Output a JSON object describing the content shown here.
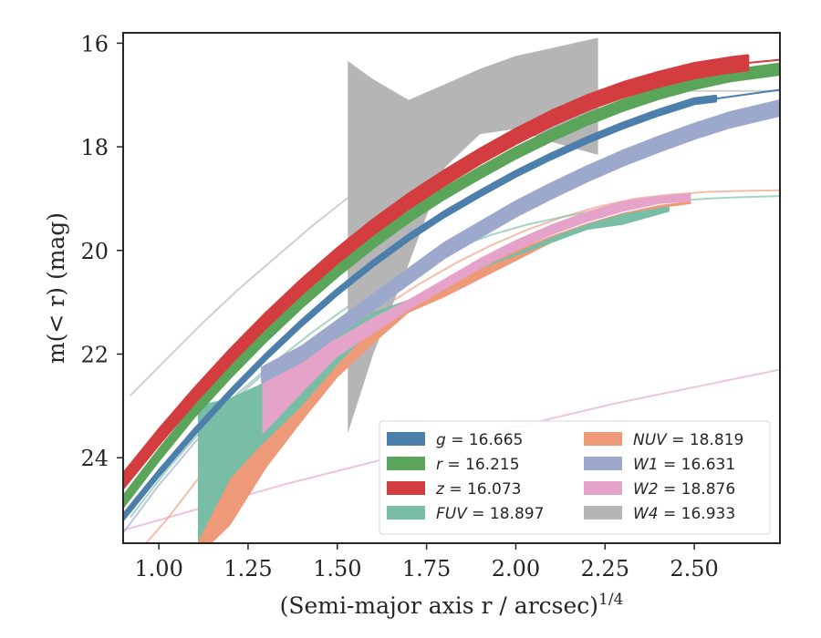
{
  "chart_data": {
    "type": "line",
    "xlabel": "(Semi-major axis r / arcsec)",
    "xlabel_exp": "1/4",
    "ylabel": "m(< r) (mag)",
    "xlim": [
      0.9,
      2.74
    ],
    "ylim": [
      25.65,
      15.8
    ],
    "y_inverted": true,
    "xticks": [
      1.0,
      1.25,
      1.5,
      1.75,
      2.0,
      2.25,
      2.5
    ],
    "xtick_labels": [
      "1.00",
      "1.25",
      "1.50",
      "1.75",
      "2.00",
      "2.25",
      "2.50"
    ],
    "yticks": [
      16,
      18,
      20,
      22,
      24
    ],
    "ytick_labels": [
      "16",
      "18",
      "20",
      "22",
      "24"
    ],
    "legend_position": "lower-right",
    "legend_columns": 2,
    "series": [
      {
        "band": "g",
        "value": "16.665",
        "color": "#4c7fab",
        "band_x": [
          0.9,
          2.56
        ],
        "band_width": 0.05,
        "line_x": [
          2.56,
          2.74
        ],
        "line_y": [
          17.07,
          16.9
        ],
        "x": [
          0.9,
          1.0,
          1.1,
          1.2,
          1.3,
          1.4,
          1.5,
          1.6,
          1.7,
          1.8,
          1.9,
          2.0,
          2.1,
          2.2,
          2.3,
          2.4,
          2.5,
          2.56
        ],
        "y": [
          25.15,
          24.3,
          23.5,
          22.75,
          22.05,
          21.4,
          20.8,
          20.25,
          19.75,
          19.3,
          18.9,
          18.52,
          18.18,
          17.87,
          17.59,
          17.34,
          17.12,
          17.07
        ]
      },
      {
        "band": "r",
        "value": "16.215",
        "color": "#5ba55b",
        "band_x": [
          0.9,
          2.74
        ],
        "band_width": 0.1,
        "x": [
          0.9,
          1.0,
          1.1,
          1.2,
          1.3,
          1.4,
          1.5,
          1.6,
          1.7,
          1.8,
          1.9,
          2.0,
          2.1,
          2.2,
          2.3,
          2.4,
          2.5,
          2.6,
          2.74
        ],
        "y": [
          24.85,
          23.95,
          23.1,
          22.35,
          21.65,
          21.0,
          20.4,
          19.85,
          19.35,
          18.9,
          18.5,
          18.12,
          17.78,
          17.47,
          17.2,
          16.97,
          16.78,
          16.63,
          16.5
        ]
      },
      {
        "band": "z",
        "value": "16.073",
        "color": "#d33d3f",
        "band_x": [
          0.9,
          2.65
        ],
        "band_width": 0.14,
        "line_x": [
          2.65,
          2.74
        ],
        "line_y": [
          16.38,
          16.32
        ],
        "x": [
          0.9,
          1.0,
          1.1,
          1.2,
          1.3,
          1.4,
          1.5,
          1.6,
          1.7,
          1.8,
          1.9,
          2.0,
          2.1,
          2.2,
          2.3,
          2.4,
          2.5,
          2.6,
          2.65
        ],
        "y": [
          24.45,
          23.6,
          22.8,
          22.05,
          21.35,
          20.7,
          20.1,
          19.55,
          19.05,
          18.6,
          18.18,
          17.8,
          17.45,
          17.15,
          16.9,
          16.7,
          16.53,
          16.42,
          16.38
        ]
      },
      {
        "band": "FUV",
        "value": "18.897",
        "color": "#78bea6",
        "band_x": [
          1.11,
          2.43
        ],
        "line_x": [
          0.9,
          2.74
        ],
        "line_x_start": 0.92,
        "x": [
          1.11,
          1.2,
          1.28,
          1.4,
          1.5,
          1.6,
          1.7,
          1.8,
          1.9,
          2.0,
          2.1,
          2.2,
          2.3,
          2.43
        ],
        "y_upper": [
          23.0,
          22.85,
          22.6,
          22.15,
          21.65,
          21.2,
          20.95,
          20.6,
          20.35,
          20.05,
          19.75,
          19.5,
          19.3,
          19.15
        ],
        "y_lower": [
          25.6,
          24.4,
          23.8,
          23.0,
          22.2,
          21.5,
          21.0,
          20.65,
          20.35,
          20.1,
          19.85,
          19.6,
          19.5,
          19.25
        ],
        "line_y": [
          25.15,
          24.25,
          23.45,
          22.75,
          22.15,
          21.6,
          21.1,
          20.65,
          20.25,
          19.95,
          19.7,
          19.5,
          19.35,
          19.22,
          19.12,
          19.05,
          19.0,
          18.97,
          18.95
        ]
      },
      {
        "band": "NUV",
        "value": "18.819",
        "color": "#ee9a78",
        "band_x": [
          1.11,
          2.49
        ],
        "line_x": [
          0.9,
          2.74
        ],
        "line_x_start": 0.92,
        "x": [
          1.11,
          1.2,
          1.3,
          1.4,
          1.5,
          1.6,
          1.7,
          1.8,
          1.9,
          2.0,
          2.1,
          2.2,
          2.3,
          2.4,
          2.49
        ],
        "y_upper": [
          24.4,
          23.7,
          23.0,
          22.45,
          21.95,
          21.45,
          21.05,
          20.65,
          20.3,
          20.0,
          19.72,
          19.48,
          19.28,
          19.13,
          19.05
        ],
        "y_lower": [
          25.9,
          25.3,
          24.2,
          23.3,
          22.45,
          21.8,
          21.2,
          20.9,
          20.55,
          20.2,
          19.85,
          19.58,
          19.37,
          19.18,
          19.1
        ],
        "line_y": [
          26.0,
          25.2,
          24.3,
          23.5,
          22.8,
          22.15,
          21.6,
          21.1,
          20.65,
          20.25,
          19.9,
          19.6,
          19.35,
          19.15,
          19.0,
          18.92,
          18.87,
          18.85,
          18.84
        ]
      },
      {
        "band": "W1",
        "value": "16.631",
        "color": "#9ca8cc",
        "band_x": [
          1.29,
          2.74
        ],
        "band_width": 0.14,
        "line_x": [
          0.9,
          1.29
        ],
        "x": [
          1.29,
          1.4,
          1.5,
          1.6,
          1.7,
          1.8,
          1.9,
          2.0,
          2.1,
          2.2,
          2.3,
          2.4,
          2.5,
          2.6,
          2.74
        ],
        "y": [
          22.4,
          22.0,
          21.5,
          21.0,
          20.5,
          20.0,
          19.6,
          19.2,
          18.85,
          18.52,
          18.22,
          17.95,
          17.7,
          17.48,
          17.25
        ],
        "line_y": [
          25.45,
          24.55,
          23.75,
          23.0,
          22.4
        ]
      },
      {
        "band": "W2",
        "value": "18.876",
        "color": "#e6a3c9",
        "band_x": [
          1.29,
          2.49
        ],
        "line_x": [
          0.9,
          2.74
        ],
        "line_x_start": 0.92,
        "x": [
          1.29,
          1.4,
          1.5,
          1.6,
          1.7,
          1.8,
          1.9,
          2.0,
          2.1,
          2.2,
          2.3,
          2.4,
          2.49
        ],
        "y_upper": [
          22.3,
          22.05,
          21.7,
          21.3,
          20.95,
          20.55,
          20.15,
          19.8,
          19.5,
          19.25,
          19.05,
          18.95,
          18.9
        ],
        "y_lower": [
          23.55,
          22.75,
          22.05,
          21.6,
          21.15,
          20.75,
          20.35,
          20.0,
          19.7,
          19.45,
          19.25,
          19.1,
          19.05
        ],
        "line_y": [
          25.4,
          24.5,
          23.7,
          22.95,
          22.3
        ]
      },
      {
        "band": "W4",
        "value": "16.933",
        "color": "#b5b5b5",
        "band_x": [
          1.53,
          2.23
        ],
        "line_x": [
          0.9,
          2.74
        ],
        "line_x_start": 0.92,
        "x": [
          1.53,
          1.6,
          1.7,
          1.8,
          1.9,
          2.0,
          2.1,
          2.23
        ],
        "y_upper": [
          16.35,
          16.7,
          17.1,
          16.8,
          16.5,
          16.25,
          16.1,
          15.9
        ],
        "y_lower": [
          23.5,
          22.0,
          20.25,
          18.4,
          17.75,
          17.65,
          17.9,
          18.15
        ],
        "line_y": [
          22.8,
          22.1,
          21.4,
          20.75,
          20.15,
          19.55,
          19.0,
          18.5,
          18.05,
          17.65,
          17.3,
          17.02,
          16.92,
          16.92,
          16.92,
          16.92,
          16.92,
          16.92,
          16.92
        ]
      }
    ]
  }
}
